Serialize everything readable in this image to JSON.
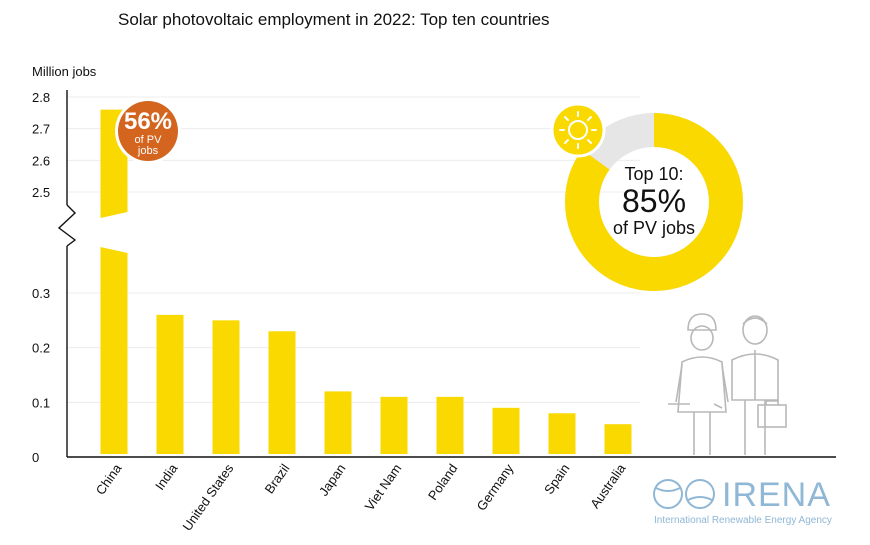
{
  "chart_data": {
    "type": "bar",
    "title": "Solar photovoltaic employment in 2022: Top ten countries",
    "ylabel": "Million jobs",
    "categories": [
      "China",
      "India",
      "United States",
      "Brazil",
      "Japan",
      "Viet Nam",
      "Poland",
      "Germany",
      "Spain",
      "Australia"
    ],
    "values": [
      2.76,
      0.26,
      0.25,
      0.23,
      0.12,
      0.11,
      0.11,
      0.09,
      0.08,
      0.06
    ],
    "y_axis": {
      "broken": true,
      "lower_range": [
        0,
        0.3
      ],
      "upper_range": [
        2.5,
        2.8
      ],
      "lower_ticks": [
        "0",
        "0.1",
        "0.2",
        "0.3"
      ],
      "upper_ticks": [
        "2.5",
        "2.6",
        "2.7",
        "2.8"
      ]
    },
    "grid": true,
    "bar_color": "#f9d900",
    "china_badge": {
      "percent": "56%",
      "line2": "of PV",
      "line3": "jobs",
      "color": "#d4651f"
    },
    "donut": {
      "share": 0.85,
      "label_top": "Top 10:",
      "label_value": "85%",
      "label_bottom": "of PV jobs",
      "color": "#f9d900",
      "rest_color": "#e6e6e6"
    }
  },
  "logo": {
    "name": "IRENA",
    "subtitle": "International Renewable Energy Agency"
  },
  "icons": [
    "sun-icon",
    "worker-woman-icon",
    "worker-man-icon"
  ]
}
